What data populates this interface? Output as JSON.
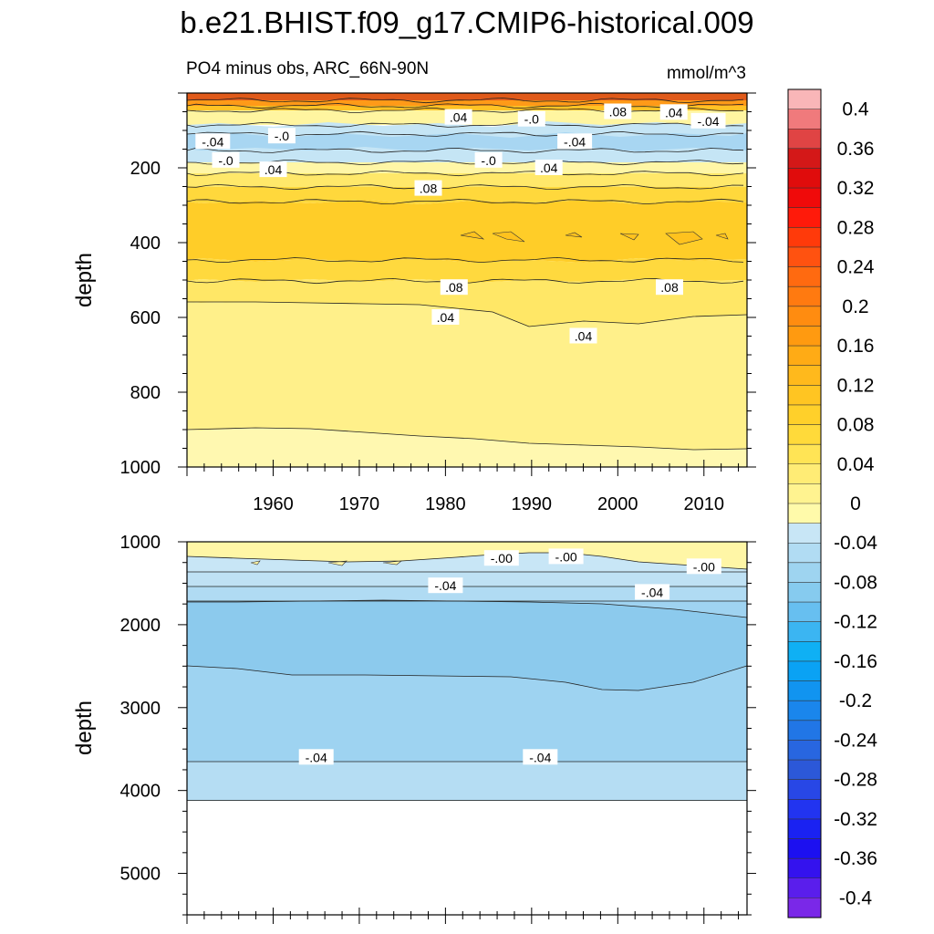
{
  "title": "b.e21.BHIST.f09_g17.CMIP6-historical.009",
  "subtitle_left": "PO4 minus obs, ARC_66N-90N",
  "subtitle_right": "mmol/m^3",
  "chart_data": [
    {
      "type": "heatmap",
      "panel": "upper",
      "variable": "PO4 minus obs",
      "region": "ARC_66N-90N",
      "units": "mmol/m^3",
      "xlabel": "",
      "ylabel": "depth",
      "xlim": [
        1950,
        2015
      ],
      "ylim": [
        1000,
        0
      ],
      "x_ticks": [
        1960,
        1970,
        1980,
        1990,
        2000,
        2010
      ],
      "y_ticks": [
        200,
        400,
        600,
        800,
        1000
      ],
      "approx_depth_bands": [
        {
          "depth_range": [
            0,
            60
          ],
          "value": 0.24
        },
        {
          "depth_range": [
            60,
            90
          ],
          "value": 0.02
        },
        {
          "depth_range": [
            90,
            180
          ],
          "value": -0.03
        },
        {
          "depth_range": [
            180,
            260
          ],
          "value": 0.04
        },
        {
          "depth_range": [
            260,
            440
          ],
          "value": 0.09
        },
        {
          "depth_range": [
            440,
            560
          ],
          "value": 0.07
        },
        {
          "depth_range": [
            560,
            910
          ],
          "value": 0.03
        },
        {
          "depth_range": [
            910,
            1000
          ],
          "value": 0.01
        }
      ],
      "contour_labels": [
        {
          "text": ".04",
          "x": 1981.5,
          "y": 65
        },
        {
          "text": "-.0",
          "x": 1990,
          "y": 70
        },
        {
          "text": ".08",
          "x": 2000,
          "y": 50
        },
        {
          "text": ".04",
          "x": 2006.5,
          "y": 52
        },
        {
          "text": "-.04",
          "x": 2010.5,
          "y": 75
        },
        {
          "text": "-.04",
          "x": 1953,
          "y": 130
        },
        {
          "text": "-.0",
          "x": 1961,
          "y": 115
        },
        {
          "text": "-.04",
          "x": 1995,
          "y": 130
        },
        {
          "text": "-.0",
          "x": 1954.5,
          "y": 180
        },
        {
          "text": ".04",
          "x": 1960,
          "y": 205
        },
        {
          "text": "-.0",
          "x": 1985,
          "y": 180
        },
        {
          "text": ".04",
          "x": 1992,
          "y": 200
        },
        {
          "text": ".08",
          "x": 1978,
          "y": 255
        },
        {
          "text": ".08",
          "x": 1981,
          "y": 520
        },
        {
          "text": ".08",
          "x": 2006,
          "y": 520
        },
        {
          "text": ".04",
          "x": 1980,
          "y": 600
        },
        {
          "text": ".04",
          "x": 1996,
          "y": 650
        }
      ]
    },
    {
      "type": "heatmap",
      "panel": "lower",
      "variable": "PO4 minus obs",
      "region": "ARC_66N-90N",
      "units": "mmol/m^3",
      "xlabel": "",
      "ylabel": "depth",
      "xlim": [
        1950,
        2015
      ],
      "ylim": [
        5500,
        1000
      ],
      "y_ticks": [
        1000,
        2000,
        3000,
        4000,
        5000
      ],
      "data_bottom_depth": 4120,
      "approx_depth_bands": [
        {
          "depth_range": [
            1000,
            1350
          ],
          "value": -0.02
        },
        {
          "depth_range": [
            1350,
            1750
          ],
          "value": -0.05
        },
        {
          "depth_range": [
            1750,
            2550
          ],
          "value": -0.07
        },
        {
          "depth_range": [
            2550,
            3570
          ],
          "value": -0.06
        },
        {
          "depth_range": [
            3570,
            4120
          ],
          "value": -0.03
        }
      ],
      "contour_labels": [
        {
          "text": "-.00",
          "x": 1986.5,
          "y": 1200
        },
        {
          "text": "-.00",
          "x": 1994,
          "y": 1180
        },
        {
          "text": "-.00",
          "x": 2010,
          "y": 1300
        },
        {
          "text": "-.04",
          "x": 1980,
          "y": 1530
        },
        {
          "text": "-.04",
          "x": 2004,
          "y": 1610
        },
        {
          "text": "-.04",
          "x": 1965,
          "y": 3600
        },
        {
          "text": "-.04",
          "x": 1991,
          "y": 3600
        }
      ]
    }
  ],
  "colorbar": {
    "levels": [
      0.4,
      0.36,
      0.32,
      0.28,
      0.24,
      0.2,
      0.16,
      0.12,
      0.08,
      0.04,
      0,
      -0.04,
      -0.08,
      -0.12,
      -0.16,
      -0.2,
      -0.24,
      -0.28,
      -0.32,
      -0.36,
      -0.4
    ],
    "labels": [
      "0.4",
      "0.36",
      "0.32",
      "0.28",
      "0.24",
      "0.2",
      "0.16",
      "0.12",
      "0.08",
      "0.04",
      "0",
      "-0.04",
      "-0.08",
      "-0.12",
      "-0.16",
      "-0.2",
      "-0.24",
      "-0.28",
      "-0.32",
      "-0.36",
      "-0.4"
    ],
    "colors": [
      "#f9b6b8",
      "#f07a7c",
      "#e04444",
      "#d41818",
      "#e00c0c",
      "#f00a0a",
      "#ff1a0a",
      "#ff3a0a",
      "#ff5210",
      "#ff6a10",
      "#ff7a10",
      "#ff8c10",
      "#ff9a10",
      "#ffab15",
      "#ffb91c",
      "#ffc522",
      "#ffd02a",
      "#ffda3a",
      "#ffe455",
      "#ffec75",
      "#fff390",
      "#fffaaa",
      "#c8e6f6",
      "#b1dcf3",
      "#9ed4f0",
      "#86cbef",
      "#67bff0",
      "#3bb5f2",
      "#0fb0f4",
      "#0aa2f4",
      "#1194f0",
      "#1a86ec",
      "#2176e6",
      "#2866e0",
      "#2c58d8",
      "#2847e6",
      "#2234f0",
      "#1a22f2",
      "#1c10f0",
      "#3412ee",
      "#5a1eec",
      "#7a28e8"
    ]
  }
}
